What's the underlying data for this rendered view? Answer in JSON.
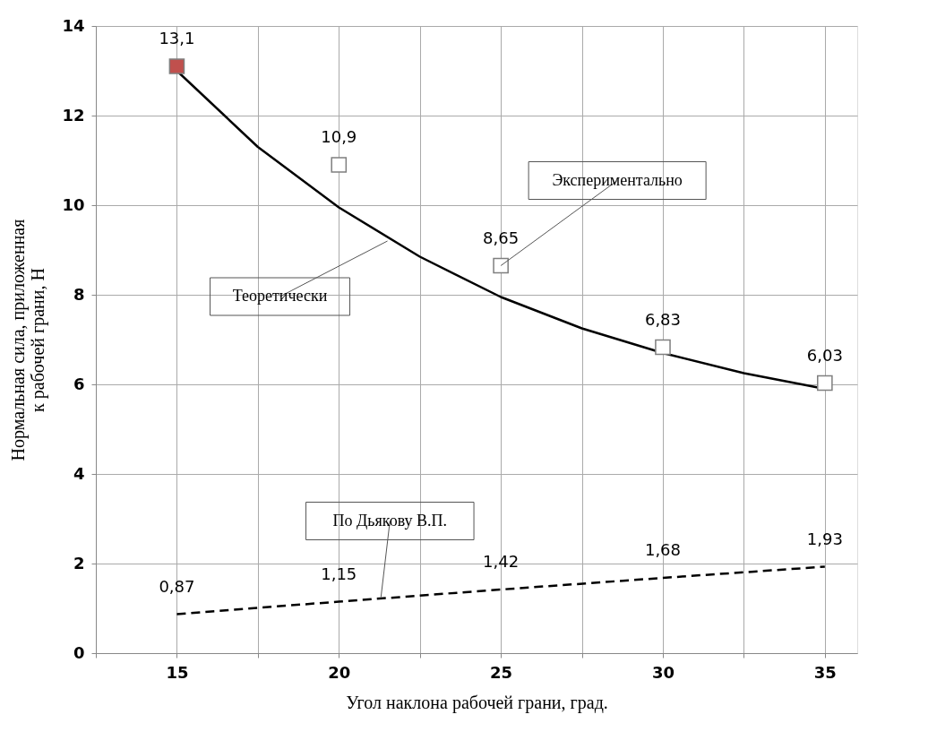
{
  "chart_data": {
    "type": "line",
    "xlabel": "Угол наклона рабочей грани, град.",
    "ylabel": "Нормальная сила, приложенная\nк рабочей грани, Н",
    "x": [
      15,
      20,
      25,
      30,
      35
    ],
    "xlim": [
      12.5,
      36
    ],
    "xticks": [
      {
        "value": 12.5,
        "label": null
      },
      15,
      {
        "value": 17.5,
        "label": null
      },
      20,
      {
        "value": 22.5,
        "label": null
      },
      25,
      {
        "value": 27.5,
        "label": null
      },
      30,
      {
        "value": 32.5,
        "label": null
      },
      35
    ],
    "ylim": [
      0,
      14
    ],
    "yticks": [
      0,
      2,
      4,
      6,
      8,
      10,
      12,
      14
    ],
    "grid": true,
    "series": [
      {
        "color": "#000000",
        "line_style": "solid",
        "x": [
          15,
          17.5,
          20,
          22.5,
          25,
          27.5,
          30,
          32.5,
          35
        ],
        "values": [
          13.0,
          11.3,
          9.95,
          8.85,
          7.95,
          7.25,
          6.7,
          6.25,
          5.9
        ]
      },
      {
        "color": "#000000",
        "line_style": "dashed",
        "values": [
          0.87,
          1.15,
          1.42,
          1.68,
          1.93
        ],
        "value_labels": [
          "0,87",
          "1,15",
          "1,42",
          "1,68",
          "1,93"
        ]
      },
      {
        "type": "scatter",
        "marker": "square",
        "colors": [
          "#c0504d",
          "#ffffff",
          "#ffffff",
          "#ffffff",
          "#ffffff"
        ],
        "values": [
          13.1,
          10.9,
          8.65,
          6.83,
          6.03
        ],
        "value_labels": [
          "13,1",
          "10,9",
          "8,65",
          "6,83",
          "6,03"
        ]
      }
    ],
    "annotations": [
      {
        "text": "Экспериментально",
        "x": 25,
        "y": 8.65
      },
      {
        "text": "Теоретически",
        "x": 21.5,
        "y": 9.2
      },
      {
        "text": "По Дьякову В.П.",
        "x": 21.3,
        "y": 1.25
      }
    ]
  }
}
